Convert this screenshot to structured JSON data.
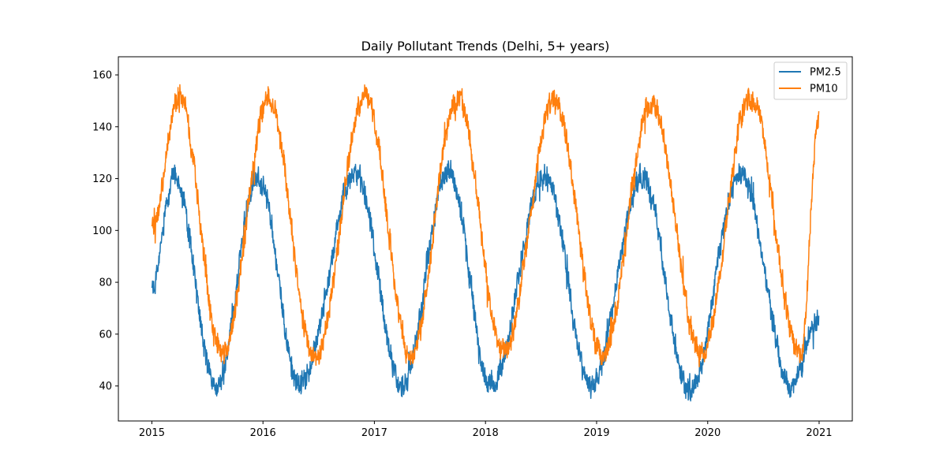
{
  "chart_data": {
    "type": "line",
    "title": "Daily Pollutant Trends (Delhi, 5+ years)",
    "xlabel": "",
    "ylabel": "",
    "x_start": "2015-01-01",
    "x_end": "2020-12-31",
    "xlim": [
      "2014-09-13",
      "2021-04-20"
    ],
    "ylim": [
      26.5,
      167
    ],
    "x_ticks": [
      "2015",
      "2016",
      "2017",
      "2018",
      "2019",
      "2020",
      "2021"
    ],
    "y_ticks": [
      40,
      60,
      80,
      100,
      120,
      140,
      160
    ],
    "grid": false,
    "legend_position": "top-right",
    "series": [
      {
        "name": "PM2.5",
        "color": "#1f77b4",
        "points": [
          [
            "2015-01-01",
            78
          ],
          [
            "2015-03-15",
            121
          ],
          [
            "2015-08-01",
            40
          ],
          [
            "2015-12-15",
            121
          ],
          [
            "2016-05-01",
            40
          ],
          [
            "2016-11-01",
            122
          ],
          [
            "2017-04-01",
            40
          ],
          [
            "2017-09-01",
            123
          ],
          [
            "2018-01-20",
            40
          ],
          [
            "2018-07-15",
            121
          ],
          [
            "2018-12-15",
            40
          ],
          [
            "2019-06-01",
            121
          ],
          [
            "2019-11-01",
            38
          ],
          [
            "2020-04-20",
            122
          ],
          [
            "2020-10-01",
            40
          ],
          [
            "2020-12-31",
            67
          ]
        ]
      },
      {
        "name": "PM10",
        "color": "#ff7f0e",
        "points": [
          [
            "2015-01-01",
            101
          ],
          [
            "2015-04-01",
            152
          ],
          [
            "2015-08-20",
            52
          ],
          [
            "2016-01-20",
            150
          ],
          [
            "2016-06-20",
            50
          ],
          [
            "2016-12-01",
            152
          ],
          [
            "2017-05-01",
            52
          ],
          [
            "2017-10-01",
            151
          ],
          [
            "2018-03-01",
            53
          ],
          [
            "2018-08-15",
            150
          ],
          [
            "2019-01-20",
            52
          ],
          [
            "2019-07-01",
            150
          ],
          [
            "2019-12-10",
            52
          ],
          [
            "2020-05-20",
            152
          ],
          [
            "2020-11-01",
            52
          ],
          [
            "2020-12-31",
            143
          ]
        ]
      }
    ]
  }
}
